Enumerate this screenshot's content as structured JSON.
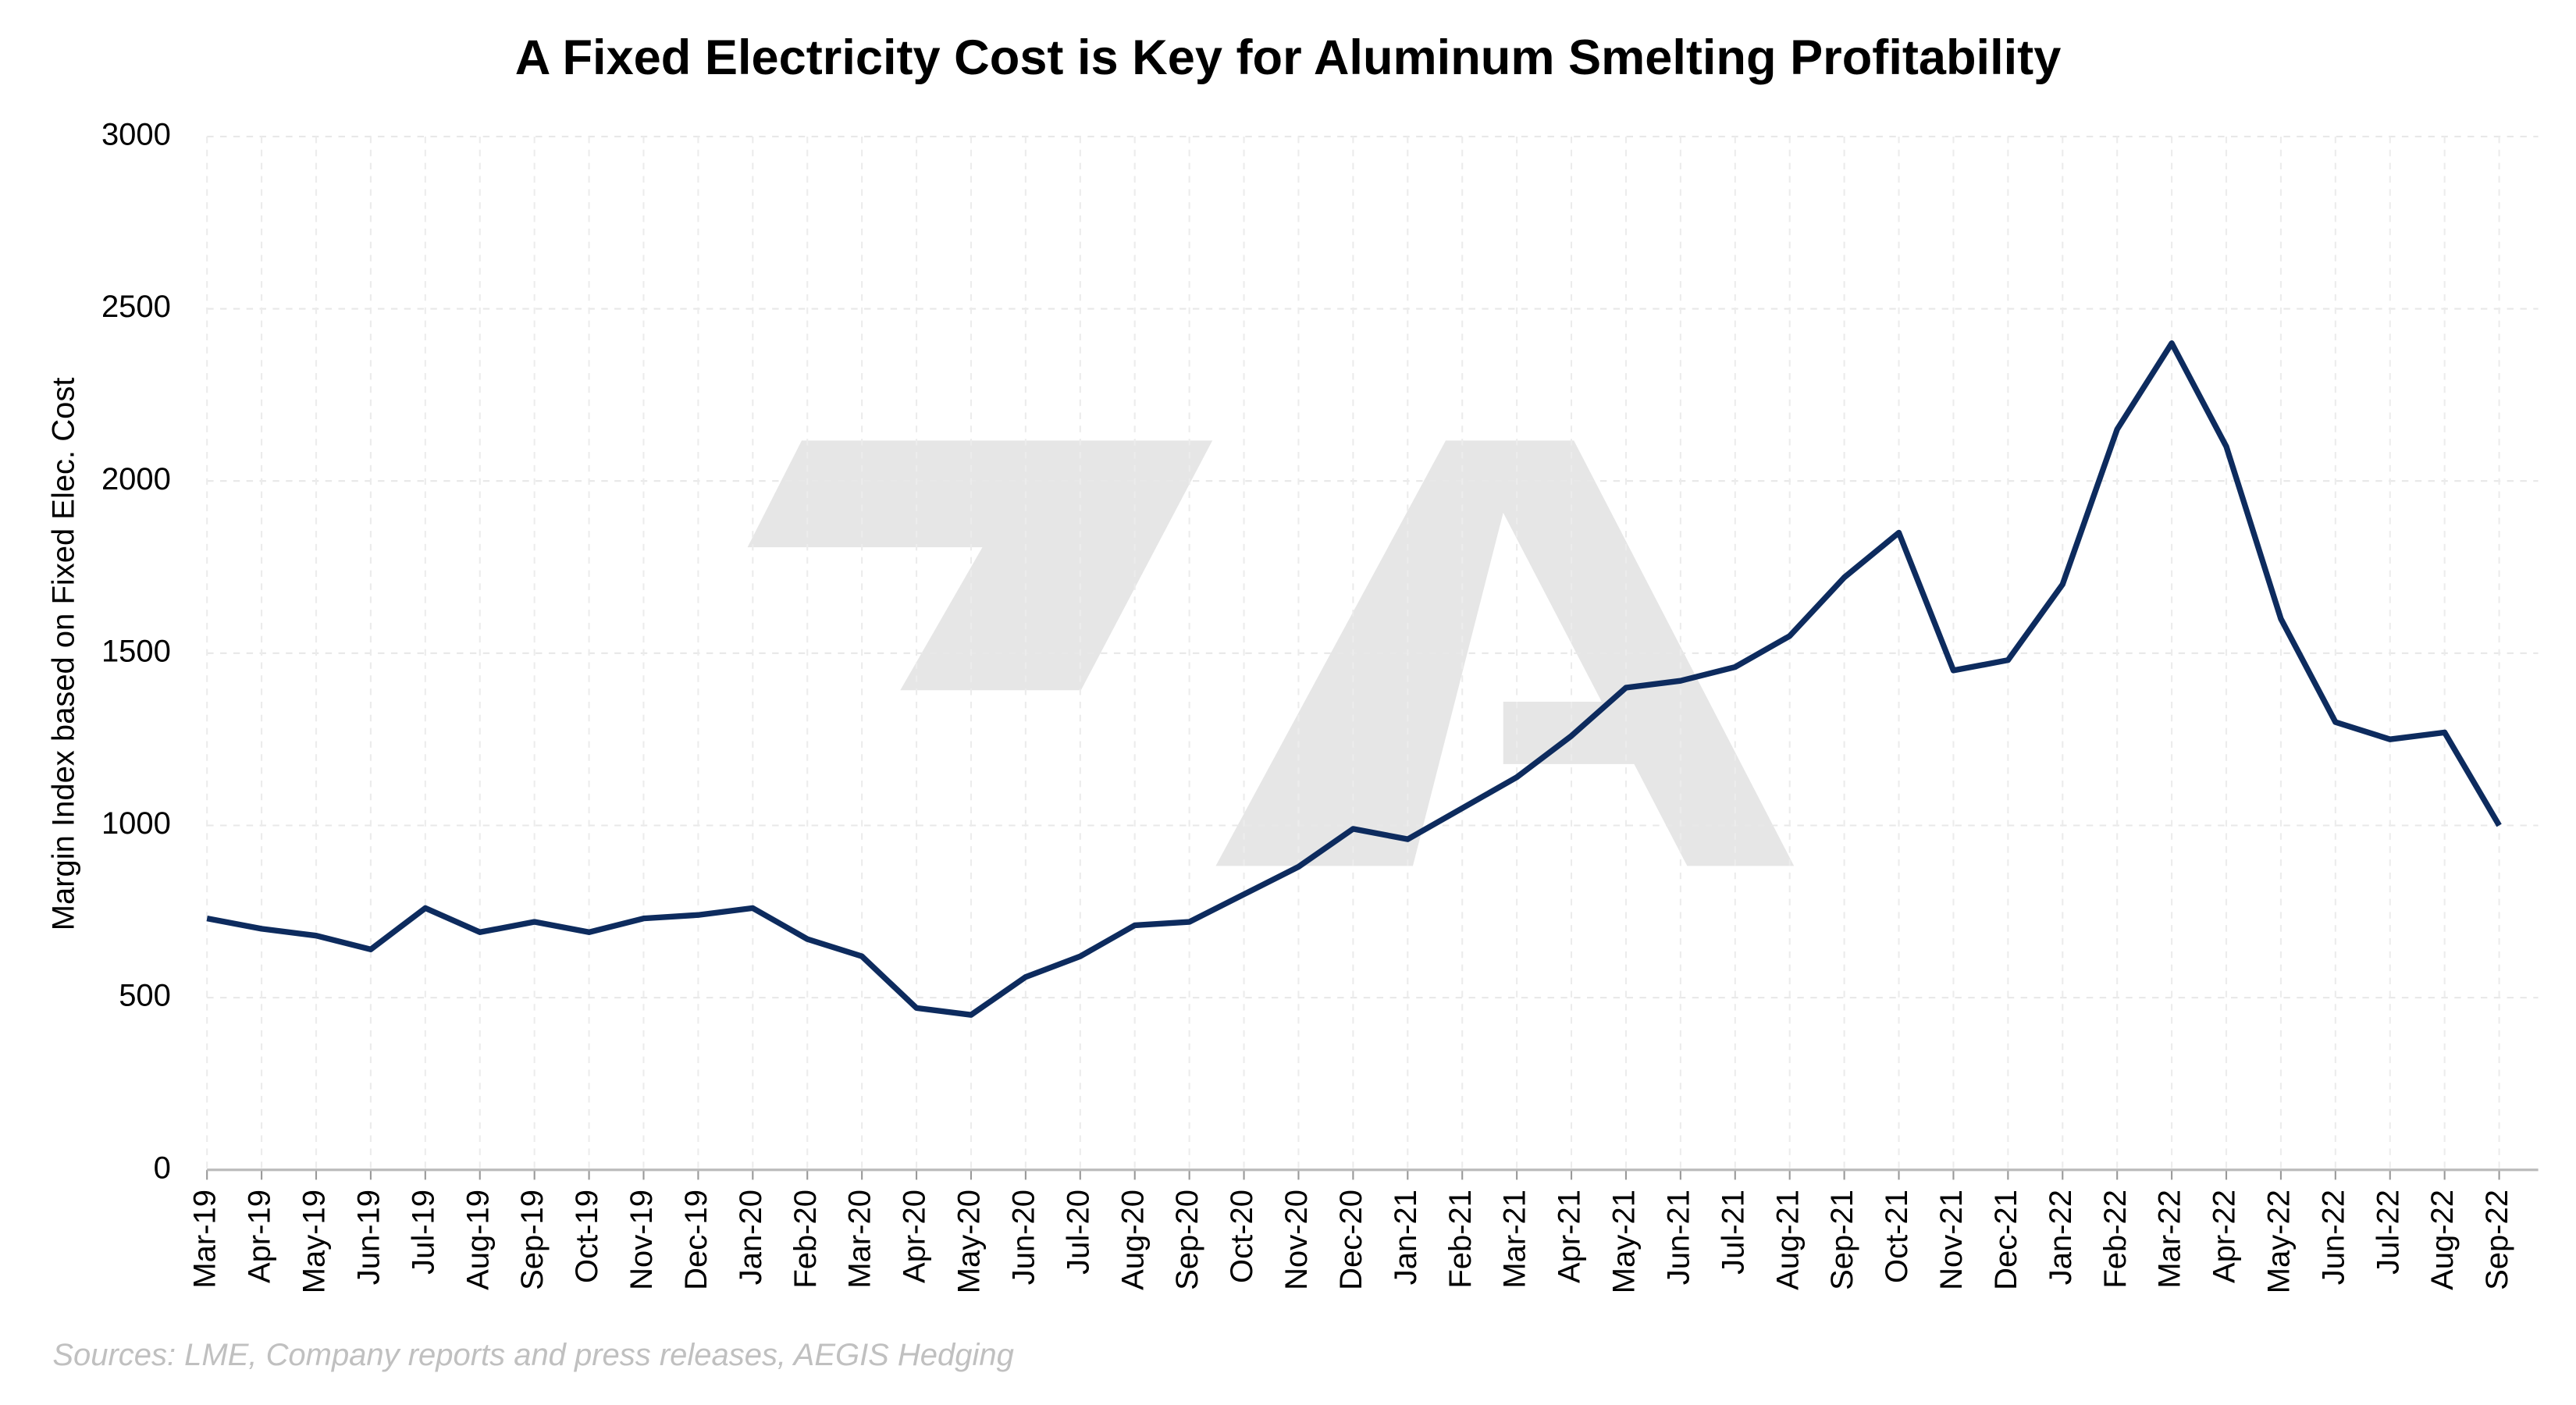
{
  "chart_data": {
    "type": "line",
    "title": "A Fixed Electricity Cost is Key for Aluminum Smelting Profitability",
    "y_label": "Margin Index based on Fixed Elec. Cost",
    "source": "Sources: LME, Company reports and press releases, AEGIS Hedging",
    "categories": [
      "Mar-19",
      "Apr-19",
      "May-19",
      "Jun-19",
      "Jul-19",
      "Aug-19",
      "Sep-19",
      "Oct-19",
      "Nov-19",
      "Dec-19",
      "Jan-20",
      "Feb-20",
      "Mar-20",
      "Apr-20",
      "May-20",
      "Jun-20",
      "Jul-20",
      "Aug-20",
      "Sep-20",
      "Oct-20",
      "Nov-20",
      "Dec-20",
      "Jan-21",
      "Feb-21",
      "Mar-21",
      "Apr-21",
      "May-21",
      "Jun-21",
      "Jul-21",
      "Aug-21",
      "Sep-21",
      "Oct-21",
      "Nov-21",
      "Dec-21",
      "Jan-22",
      "Feb-22",
      "Mar-22",
      "Apr-22",
      "May-22",
      "Jun-22",
      "Jul-22",
      "Aug-22",
      "Sep-22"
    ],
    "series": [
      {
        "name": "Margin Index",
        "color": "#0d2b5e",
        "values": [
          730,
          700,
          680,
          640,
          760,
          690,
          720,
          690,
          730,
          740,
          760,
          670,
          620,
          470,
          450,
          560,
          620,
          710,
          720,
          800,
          880,
          990,
          960,
          1050,
          1140,
          1260,
          1400,
          1420,
          1460,
          1550,
          1720,
          1850,
          1450,
          1480,
          1700,
          2150,
          2400,
          2100,
          1600,
          1300,
          1250,
          1270,
          1000
        ]
      }
    ],
    "ylim": [
      0,
      3000
    ],
    "yticks": [
      0,
      500,
      1000,
      1500,
      2000,
      2500,
      3000
    ],
    "grid": true
  }
}
